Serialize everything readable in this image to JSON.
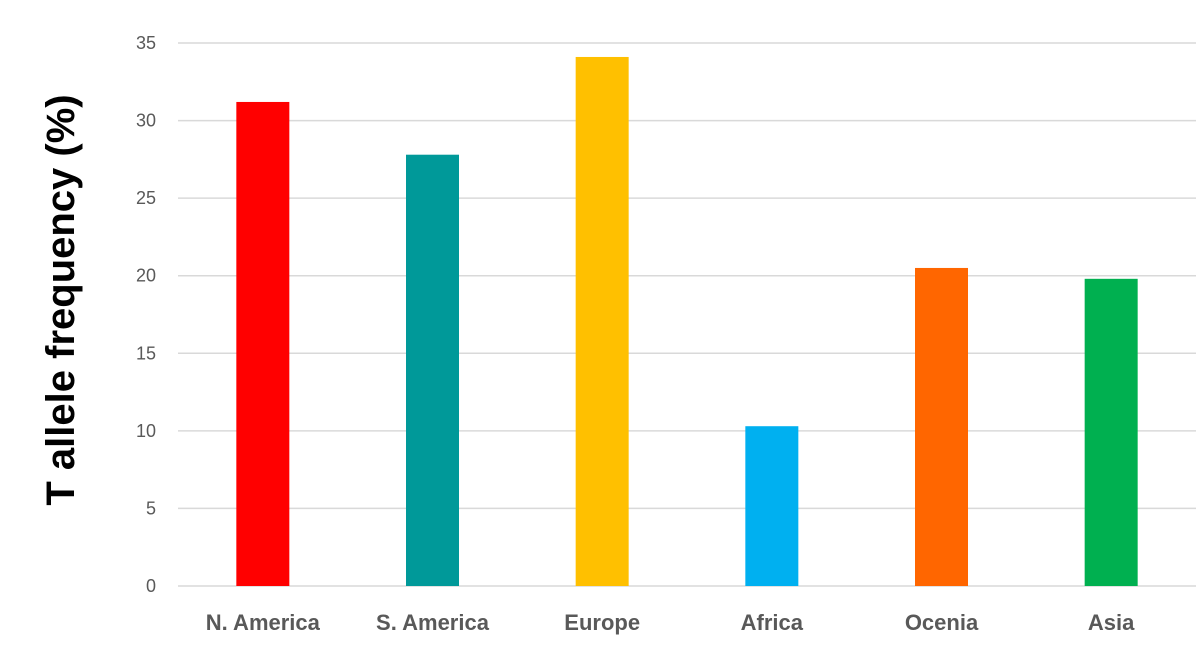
{
  "chart_data": {
    "type": "bar",
    "title": "",
    "xlabel": "",
    "ylabel": "T allele frequency (%)",
    "ylim": [
      0,
      35
    ],
    "yticks": [
      0,
      5,
      10,
      15,
      20,
      25,
      30,
      35
    ],
    "grid": true,
    "legend": "none",
    "categories": [
      "N. America",
      "S. America",
      "Europe",
      "Africa",
      "Ocenia",
      "Asia"
    ],
    "values": [
      31.2,
      27.8,
      34.1,
      10.3,
      20.5,
      19.8
    ],
    "colors": [
      "#ff0000",
      "#009999",
      "#ffc000",
      "#00b0f0",
      "#ff6600",
      "#00b050"
    ]
  }
}
